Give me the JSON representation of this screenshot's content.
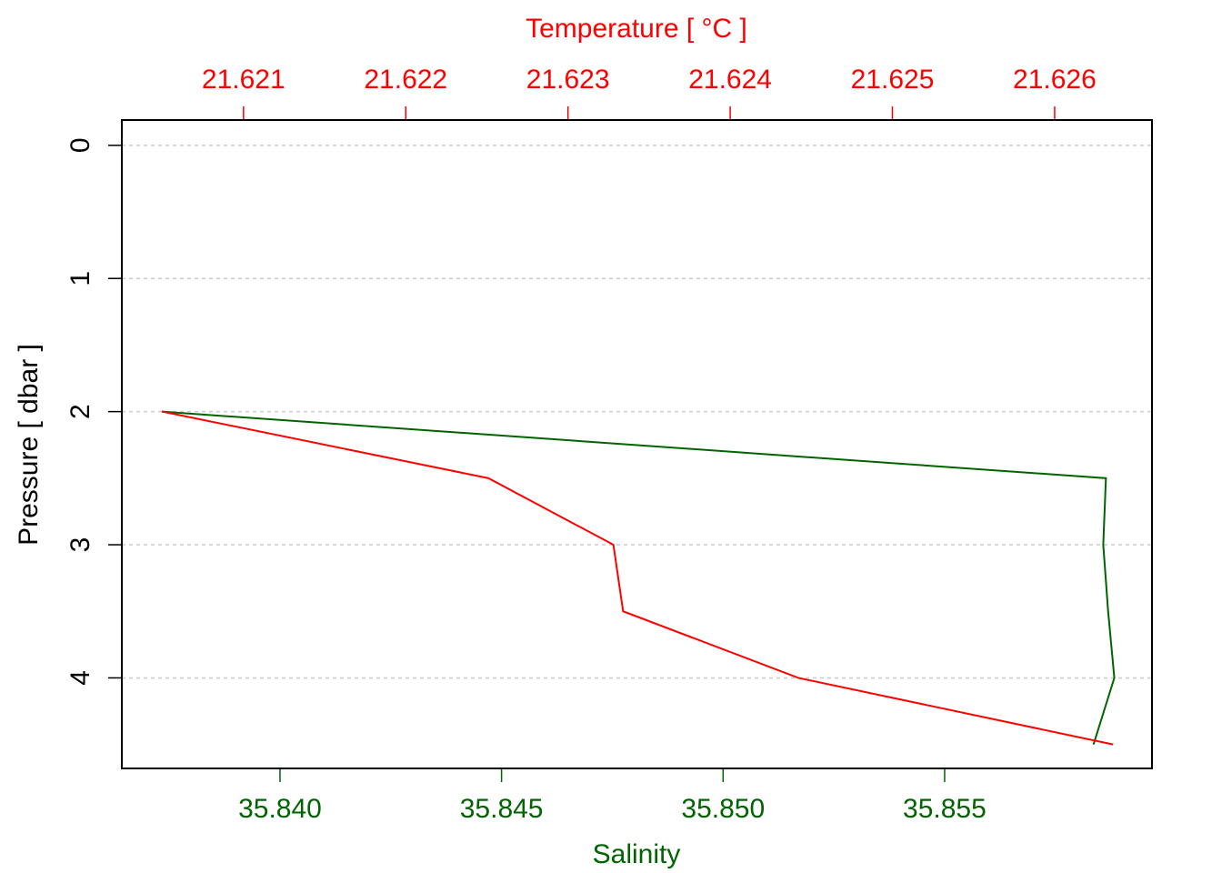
{
  "chart_data": {
    "type": "profile",
    "xlabel": "Salinity",
    "x2label": "Temperature [ °C ]",
    "ylabel": "Pressure [ dbar ]",
    "y": [
      2,
      2.5,
      3,
      3.5,
      4,
      4.5
    ],
    "series": [
      {
        "axis": "x",
        "color": "#006400",
        "values": [
          35.83733,
          35.85864,
          35.85858,
          35.85869,
          35.85883,
          35.85836
        ]
      },
      {
        "axis": "x2",
        "color": "#ff0000",
        "values": [
          21.6205,
          21.62251,
          21.62328,
          21.62334,
          21.62442,
          21.62636
        ]
      }
    ],
    "xlim": [
      35.83643,
      35.85968
    ],
    "xticks": [
      {
        "value": 35.84,
        "label": "35.840"
      },
      35.845,
      {
        "value": 35.85,
        "label": "35.850"
      },
      35.855
    ],
    "x2lim": [
      21.62025,
      21.6266
    ],
    "x2ticks": [
      21.621,
      21.622,
      21.623,
      21.624,
      21.625,
      21.626
    ],
    "ylim": [
      -0.19,
      4.68
    ],
    "y_reversed": true,
    "yticks": [
      0,
      1,
      2,
      3,
      4
    ],
    "grid": true
  }
}
